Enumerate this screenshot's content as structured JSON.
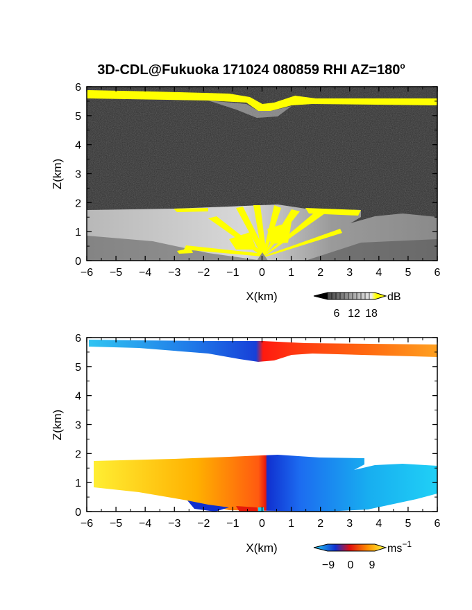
{
  "chart_data": [
    {
      "type": "heatmap",
      "title": "3D-CDL@Fukuoka 171024 080859 RHI AZ=180",
      "title_superscript": "o",
      "xlabel": "X(km)",
      "ylabel": "Z(km)",
      "xlim": [
        -6,
        6
      ],
      "ylim": [
        0,
        6
      ],
      "xticks": [
        "-6",
        "-5",
        "-4",
        "-3",
        "-2",
        "-1",
        "0",
        "1",
        "2",
        "3",
        "4",
        "5",
        "6"
      ],
      "yticks": [
        "0",
        "1",
        "2",
        "3",
        "4",
        "5",
        "6"
      ],
      "colorbar": {
        "label": "dB",
        "ticks": [
          "6",
          "12",
          "18"
        ],
        "range": [
          0,
          20
        ],
        "palette": "grayscale-to-yellow"
      },
      "background": "#2e2e2e",
      "layers": [
        {
          "name": "upper_layer",
          "z_bottom": 5.45,
          "z_top": 5.9,
          "signal_db": 20
        },
        {
          "name": "lower_layer",
          "z_bottom": 0.0,
          "z_top": 1.8,
          "signal_db": 12
        }
      ]
    },
    {
      "type": "heatmap",
      "xlabel": "X(km)",
      "ylabel": "Z(km)",
      "xlim": [
        -6,
        6
      ],
      "ylim": [
        0,
        6
      ],
      "xticks": [
        "-6",
        "-5",
        "-4",
        "-3",
        "-2",
        "-1",
        "0",
        "1",
        "2",
        "3",
        "4",
        "5",
        "6"
      ],
      "yticks": [
        "0",
        "1",
        "2",
        "3",
        "4",
        "5",
        "6"
      ],
      "colorbar": {
        "label": "ms",
        "label_superscript": "−1",
        "ticks": [
          "−9",
          "0",
          "9"
        ],
        "range": [
          -12,
          12
        ],
        "palette": "blue-red-yellow"
      },
      "background": "#ffffff",
      "layers": [
        {
          "name": "upper_layer",
          "z_bottom": 5.45,
          "z_top": 5.9,
          "velocity_left": -10,
          "velocity_right": 8
        },
        {
          "name": "lower_layer",
          "z_bottom": 0.0,
          "z_top": 1.8,
          "velocity_left": 11,
          "velocity_right": -10
        }
      ]
    }
  ]
}
